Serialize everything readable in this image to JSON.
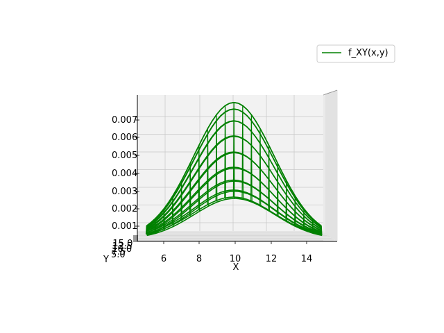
{
  "chart_data": {
    "type": "wireframe-3d",
    "title": "",
    "xlabel": "X",
    "ylabel": "Y",
    "zlabel": "",
    "x_ticks": [
      "6",
      "8",
      "10",
      "12",
      "14"
    ],
    "y_ticks": [
      "5.0",
      "7.5",
      "10.0",
      "12.5",
      "15.0"
    ],
    "z_ticks": [
      "0.001",
      "0.002",
      "0.003",
      "0.004",
      "0.005",
      "0.006",
      "0.007"
    ],
    "xlim": [
      5,
      15
    ],
    "ylim": [
      5,
      15
    ],
    "zlim": [
      0,
      0.008
    ],
    "grid": true,
    "legend_position": "upper-right",
    "series": [
      {
        "name": "f_XY(x,y)",
        "color": "#008000",
        "peak_x": 10,
        "peak_value": 0.0079
      }
    ]
  }
}
